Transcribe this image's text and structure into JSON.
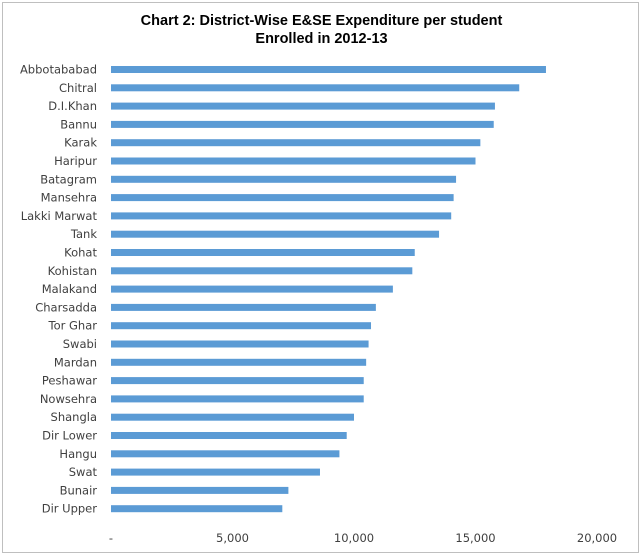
{
  "chart_data": {
    "type": "bar",
    "orientation": "horizontal",
    "title_line1": "Chart 2: District-Wise E&SE Expenditure per student",
    "title_line2": "Enrolled in 2012-13",
    "categories": [
      "Abbotababad",
      "Chitral",
      "D.I.Khan",
      "Bannu",
      "Karak",
      "Haripur",
      "Batagram",
      "Mansehra",
      "Lakki Marwat",
      "Tank",
      "Kohat",
      "Kohistan",
      "Malakand",
      "Charsadda",
      "Tor Ghar",
      "Swabi",
      "Mardan",
      "Peshawar",
      "Nowsehra",
      "Shangla",
      "Dir Lower",
      "Hangu",
      "Swat",
      "Bunair",
      "Dir Upper"
    ],
    "values": [
      17900,
      16800,
      15800,
      15750,
      15200,
      15000,
      14200,
      14100,
      14000,
      13500,
      12500,
      12400,
      11600,
      10900,
      10700,
      10600,
      10500,
      10400,
      10400,
      10000,
      9700,
      9400,
      8600,
      7300,
      7050
    ],
    "xlim": [
      0,
      20000
    ],
    "xticks": [
      0,
      5000,
      10000,
      15000,
      20000
    ],
    "xtick_labels": [
      "-",
      "5,000",
      "10,000",
      "15,000",
      "20,000"
    ],
    "grid": false,
    "bar_color": "#5b9bd5"
  }
}
